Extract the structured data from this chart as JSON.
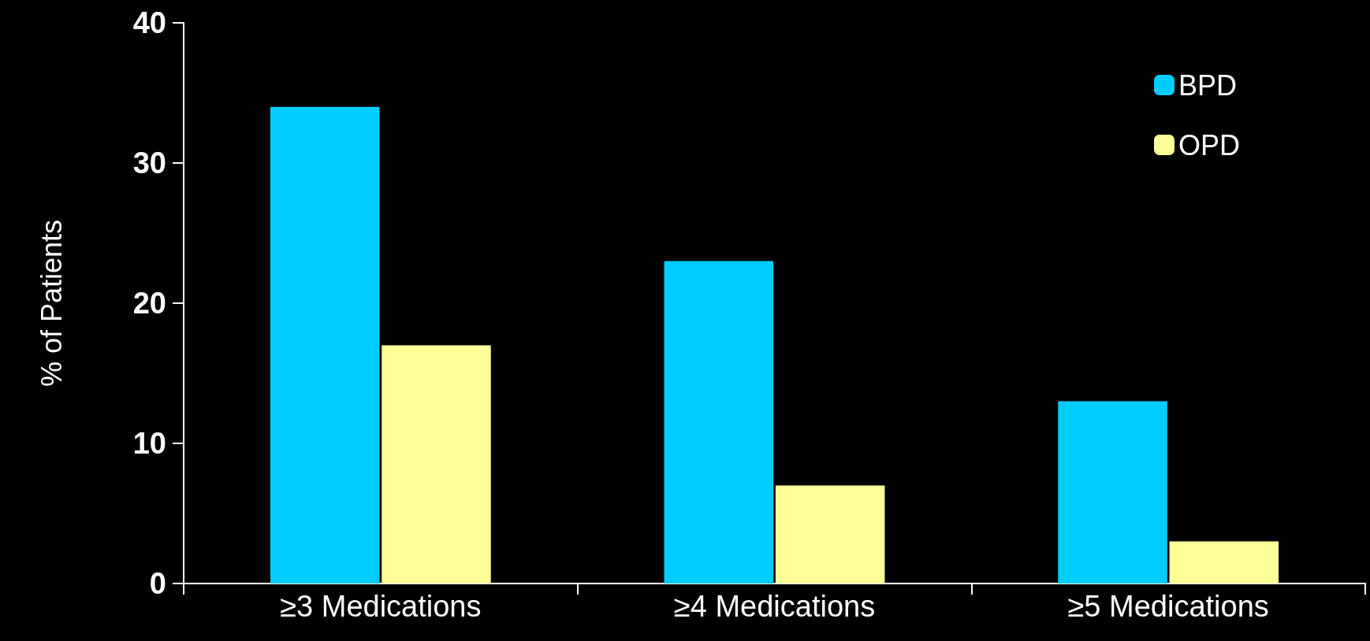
{
  "chart_data": {
    "type": "bar",
    "ylabel": "% of Patients",
    "categories": [
      "≥3 Medications",
      "≥4 Medications",
      "≥5 Medications"
    ],
    "series": [
      {
        "name": "BPD",
        "color": "#00ccff",
        "values": [
          34,
          23,
          13
        ]
      },
      {
        "name": "OPD",
        "color": "#ffff99",
        "values": [
          17,
          7,
          3
        ]
      }
    ],
    "ylim": [
      0,
      40
    ],
    "yticks": [
      0,
      10,
      20,
      30,
      40
    ],
    "grid": false,
    "legend": "top right"
  }
}
